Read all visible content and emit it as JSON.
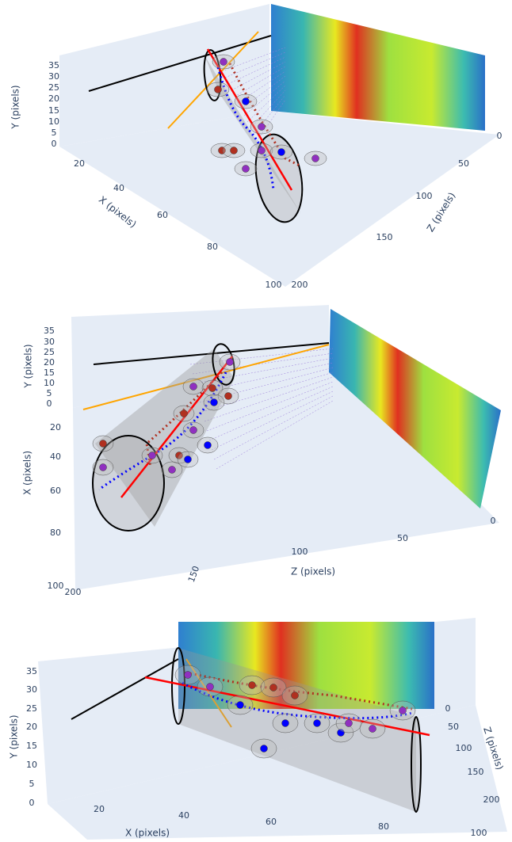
{
  "panels": [
    {
      "y_axis_label": "Y (pixels)",
      "x_axis_label": "X (pixels)",
      "z_axis_label": "Z (pixels)",
      "yticks": [
        0,
        5,
        10,
        15,
        20,
        25,
        30,
        35
      ],
      "xticks": [
        20,
        40,
        60,
        80,
        100
      ],
      "zticks": [
        0,
        50,
        100,
        150,
        200
      ]
    },
    {
      "y_axis_label": "Y (pixels)",
      "x_axis_label": "X (pixels)",
      "z_axis_label": "Z (pixels)",
      "yticks": [
        0,
        5,
        10,
        15,
        20,
        25,
        30,
        35
      ],
      "xticks": [
        20,
        40,
        60,
        80,
        100
      ],
      "zticks": [
        0,
        50,
        100,
        150,
        200
      ]
    },
    {
      "y_axis_label": "Y (pixels)",
      "x_axis_label": "X (pixels)",
      "z_axis_label": "Z (pixels)",
      "yticks": [
        0,
        5,
        10,
        15,
        20,
        25,
        30,
        35
      ],
      "xticks": [
        20,
        40,
        60,
        80,
        100
      ],
      "zticks": [
        0,
        50,
        100,
        150,
        200
      ]
    }
  ]
}
